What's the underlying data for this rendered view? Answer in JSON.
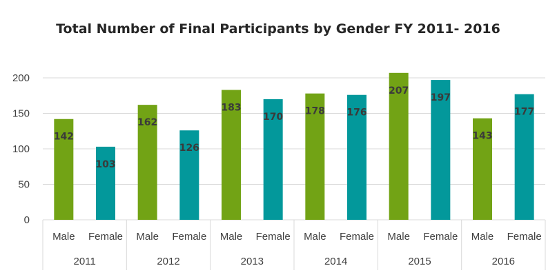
{
  "chart_data": {
    "type": "bar",
    "title": "Total Number of Final Participants by Gender FY 2011- 2016",
    "xlabel": "",
    "ylabel": "",
    "ylim": [
      0,
      200
    ],
    "yticks": [
      0,
      50,
      100,
      150,
      200
    ],
    "grid": true,
    "groups": [
      {
        "year": "2011",
        "bars": [
          {
            "label": "Male",
            "value": 142
          },
          {
            "label": "Female",
            "value": 103
          }
        ]
      },
      {
        "year": "2012",
        "bars": [
          {
            "label": "Male",
            "value": 162
          },
          {
            "label": "Female",
            "value": 126
          }
        ]
      },
      {
        "year": "2013",
        "bars": [
          {
            "label": "Male",
            "value": 183
          },
          {
            "label": "Female",
            "value": 170
          }
        ]
      },
      {
        "year": "2014",
        "bars": [
          {
            "label": "Male",
            "value": 178
          },
          {
            "label": "Female",
            "value": 176
          }
        ]
      },
      {
        "year": "2015",
        "bars": [
          {
            "label": "Male",
            "value": 207
          },
          {
            "label": "Female",
            "value": 197
          }
        ]
      },
      {
        "year": "2016",
        "bars": [
          {
            "label": "Male",
            "value": 143
          },
          {
            "label": "Female",
            "value": 177
          }
        ]
      }
    ],
    "colors": {
      "Male": "#72a315",
      "Female": "#03989b"
    }
  }
}
